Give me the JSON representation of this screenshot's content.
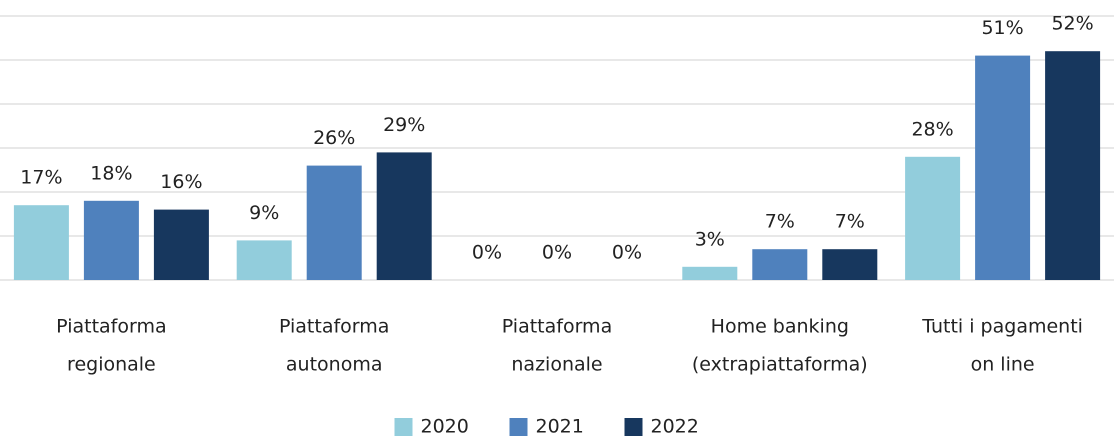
{
  "chart_data": {
    "type": "bar",
    "categories": [
      [
        "Piattaforma",
        "regionale"
      ],
      [
        "Piattaforma",
        "autonoma"
      ],
      [
        "Piattaforma",
        "nazionale"
      ],
      [
        "Home banking",
        "(extrapiattaforma)"
      ],
      [
        "Tutti i pagamenti",
        "on line"
      ]
    ],
    "series": [
      {
        "name": "2020",
        "color": "#92cddc",
        "values": [
          17,
          9,
          0,
          3,
          28
        ],
        "value_labels": [
          "17%",
          "9%",
          "0%",
          "3%",
          "28%"
        ]
      },
      {
        "name": "2021",
        "color": "#4f81bd",
        "values": [
          18,
          26,
          0,
          7,
          51
        ],
        "value_labels": [
          "18%",
          "26%",
          "0%",
          "7%",
          "51%"
        ]
      },
      {
        "name": "2022",
        "color": "#17375e",
        "values": [
          16,
          29,
          0,
          7,
          52
        ],
        "value_labels": [
          "16%",
          "29%",
          "0%",
          "7%",
          "52%"
        ]
      }
    ],
    "ylim": [
      0,
      60
    ],
    "yticks": [
      0,
      10,
      20,
      30,
      40,
      50,
      60
    ],
    "grid": true,
    "legend": "bottom"
  }
}
